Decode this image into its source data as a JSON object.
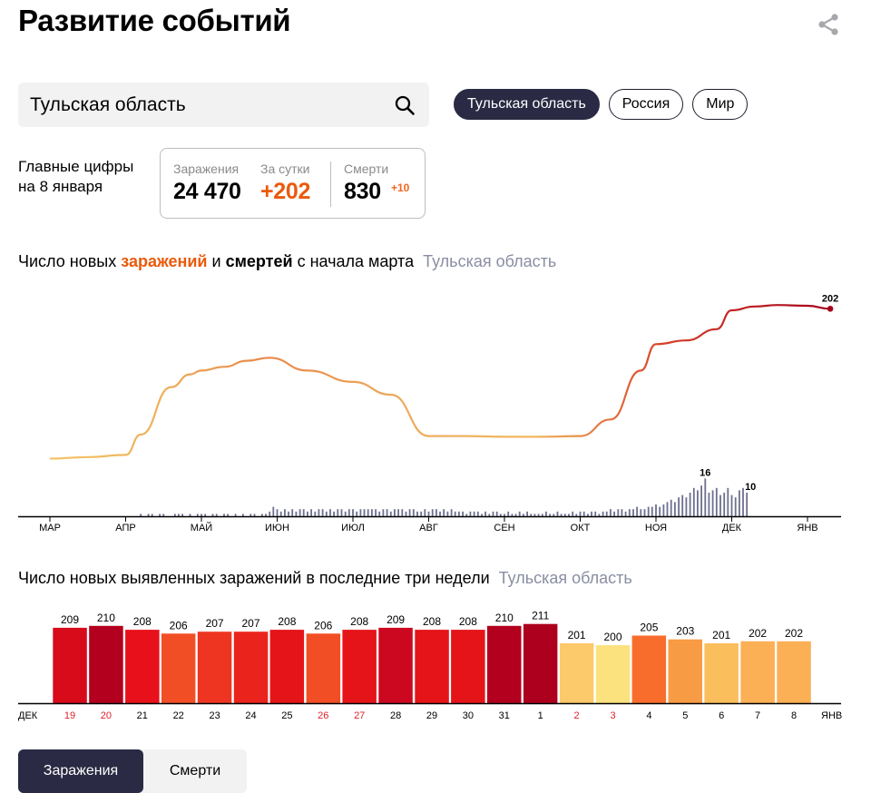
{
  "header": {
    "title": "Развитие событий"
  },
  "search": {
    "value": "Тульская область"
  },
  "regions": [
    "Тульская область",
    "Россия",
    "Мир"
  ],
  "summary": {
    "label_line1": "Главные цифры",
    "label_line2": "на 8 января",
    "infections_label": "Заражения",
    "infections_value": "24 470",
    "daily_label": "За сутки",
    "daily_value": "+202",
    "deaths_label": "Смерти",
    "deaths_value": "830",
    "deaths_delta": "+10"
  },
  "colors": {
    "accent": "#ea5a0c",
    "dark": "#2a2a44",
    "muted": "#8a8ea3"
  },
  "chart1": {
    "heading_part1": "Число новых ",
    "heading_infections": "заражений",
    "heading_part2": " и ",
    "heading_deaths": "смертей",
    "heading_part3": " с начала марта",
    "heading_region": "Тульская область"
  },
  "chart2": {
    "heading_text": "Число новых выявленных заражений в последние три недели",
    "heading_region": "Тульская область",
    "month_start": "ДЕК",
    "month_end": "ЯНВ"
  },
  "toggle": {
    "infections": "Заражения",
    "deaths": "Смерти"
  },
  "chart_data": [
    {
      "type": "line",
      "x_ticks": [
        "МАР",
        "АПР",
        "МАЙ",
        "ИЮН",
        "ИЮЛ",
        "АВГ",
        "СЕН",
        "ОКТ",
        "НОЯ",
        "ДЕК",
        "ЯНВ"
      ],
      "series": [
        {
          "name": "заражений",
          "x": [
            0,
            0.5,
            1,
            1.2,
            1.6,
            1.85,
            2,
            2.3,
            2.6,
            2.9,
            3.4,
            4,
            4.5,
            5,
            5.5,
            6,
            6.5,
            7,
            7.4,
            7.8,
            8,
            8.4,
            8.8,
            9,
            9.3,
            9.6,
            10,
            10.3
          ],
          "values": [
            3,
            5,
            8,
            35,
            98,
            115,
            120,
            125,
            133,
            137,
            120,
            105,
            88,
            33,
            33,
            32,
            32,
            33,
            55,
            120,
            155,
            160,
            175,
            200,
            205,
            207,
            206,
            202
          ],
          "end_label": "202"
        },
        {
          "name": "смертей",
          "start_x": 1.2,
          "step": 0.05,
          "values": [
            1,
            0,
            1,
            1,
            0,
            1,
            1,
            0,
            0,
            1,
            1,
            1,
            0,
            1,
            0,
            1,
            1,
            1,
            0,
            1,
            1,
            0,
            1,
            1,
            0,
            1,
            0,
            1,
            0,
            1,
            1,
            0,
            1,
            1,
            2,
            4,
            3,
            2,
            3,
            2,
            3,
            2,
            3,
            3,
            2,
            3,
            2,
            3,
            3,
            2,
            3,
            2,
            3,
            3,
            2,
            3,
            3,
            2,
            3,
            3,
            3,
            3,
            3,
            2,
            3,
            3,
            2,
            3,
            3,
            3,
            2,
            3,
            3,
            2,
            2,
            3,
            2,
            3,
            3,
            2,
            3,
            2,
            3,
            2,
            2,
            2,
            1,
            2,
            2,
            2,
            1,
            2,
            1,
            2,
            2,
            1,
            1,
            2,
            1,
            1,
            2,
            1,
            2,
            1,
            1,
            1,
            1,
            2,
            1,
            1,
            2,
            1,
            1,
            1,
            2,
            1,
            2,
            2,
            1,
            2,
            2,
            1,
            2,
            2,
            3,
            2,
            3,
            3,
            2,
            3,
            3,
            4,
            3,
            3,
            4,
            4,
            5,
            4,
            5,
            6,
            7,
            6,
            8,
            9,
            8,
            10,
            12,
            11,
            13,
            16,
            10,
            11,
            12,
            9,
            10,
            12,
            9,
            8,
            11,
            12,
            10
          ],
          "peak_label": "16",
          "end_label": "10"
        }
      ]
    },
    {
      "type": "bar",
      "categories": [
        "19",
        "20",
        "21",
        "22",
        "23",
        "24",
        "25",
        "26",
        "27",
        "28",
        "29",
        "30",
        "31",
        "1",
        "2",
        "3",
        "4",
        "5",
        "6",
        "7",
        "8"
      ],
      "values": [
        209,
        210,
        208,
        206,
        207,
        207,
        208,
        206,
        208,
        209,
        208,
        208,
        210,
        211,
        201,
        200,
        205,
        203,
        201,
        202,
        202
      ],
      "weekend": [
        true,
        true,
        false,
        false,
        false,
        false,
        false,
        true,
        true,
        false,
        false,
        false,
        false,
        false,
        true,
        true,
        false,
        false,
        false,
        false,
        false
      ],
      "bar_colors": [
        "#d80b1b",
        "#b3001e",
        "#e8101b",
        "#f24e25",
        "#ee3522",
        "#ea241c",
        "#e51419",
        "#f24e25",
        "#e51419",
        "#cc0720",
        "#e51419",
        "#e51419",
        "#b3001e",
        "#ad001e",
        "#fcc96b",
        "#fce17f",
        "#f96d2c",
        "#f89b45",
        "#fbbe5c",
        "#fbb055",
        "#fbb055"
      ]
    }
  ]
}
